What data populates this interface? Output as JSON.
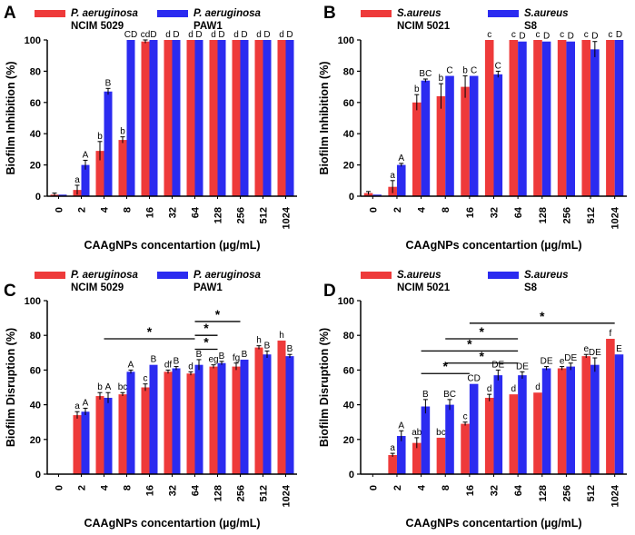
{
  "colors": {
    "red": "#ee3a3a",
    "blue": "#2b2bf0",
    "axis": "#000000",
    "bar_edge": "#000000"
  },
  "chart_data": [
    {
      "panel": "A",
      "type": "bar",
      "title": "",
      "xlabel": "CAAgNPs concentartion (µg/mL)",
      "ylabel": "Biofilm Inhibition (%)",
      "ylim": [
        0,
        100
      ],
      "yticks": [
        0,
        20,
        40,
        60,
        80,
        100
      ],
      "categories": [
        "0",
        "2",
        "4",
        "8",
        "16",
        "32",
        "64",
        "128",
        "256",
        "512",
        "1024"
      ],
      "series": [
        {
          "name": "P. aeruginosa NCIM 5029",
          "legend_italic": "P. aeruginosa",
          "legend_sub": "NCIM 5029",
          "color": "red",
          "values": [
            1,
            4,
            29,
            36,
            99,
            100,
            100,
            100,
            100,
            100,
            100
          ],
          "errors": [
            1,
            3,
            6,
            2,
            1,
            0,
            0,
            0,
            0,
            0,
            0
          ],
          "letters": [
            "",
            "a",
            "b",
            "b",
            "cd",
            "d",
            "d",
            "d",
            "d",
            "d",
            "d"
          ]
        },
        {
          "name": "P. aeruginosa PAW1",
          "legend_italic": "P. aeruginosa",
          "legend_sub": "PAW1",
          "color": "blue",
          "values": [
            1,
            20,
            67,
            100,
            100,
            100,
            100,
            100,
            100,
            100,
            100
          ],
          "errors": [
            0,
            3,
            2,
            0,
            0,
            0,
            0,
            0,
            0,
            0,
            0
          ],
          "letters": [
            "",
            "A",
            "B",
            "CD",
            "D",
            "D",
            "D",
            "D",
            "D",
            "D",
            "D"
          ]
        }
      ],
      "brackets": []
    },
    {
      "panel": "B",
      "type": "bar",
      "title": "",
      "xlabel": "CAAgNPs concentartion (µg/mL)",
      "ylabel": "Biofilm Inhibition (%)",
      "ylim": [
        0,
        100
      ],
      "yticks": [
        0,
        20,
        40,
        60,
        80,
        100
      ],
      "categories": [
        "0",
        "2",
        "4",
        "8",
        "16",
        "32",
        "64",
        "128",
        "256",
        "512",
        "1024"
      ],
      "series": [
        {
          "name": "S.aureus NCIM 5021",
          "legend_italic": "S.aureus",
          "legend_sub": "NCIM 5021",
          "color": "red",
          "values": [
            2,
            6,
            60,
            64,
            70,
            100,
            100,
            100,
            100,
            100,
            100
          ],
          "errors": [
            1,
            4,
            5,
            8,
            7,
            0,
            0,
            0,
            0,
            0,
            0
          ],
          "letters": [
            "",
            "a",
            "b",
            "b",
            "b",
            "c",
            "c",
            "c",
            "c",
            "c",
            "c"
          ]
        },
        {
          "name": "S.aureus S8",
          "legend_italic": "S.aureus",
          "legend_sub": "S8",
          "color": "blue",
          "values": [
            1,
            20,
            74,
            77,
            77,
            78,
            99,
            99,
            99,
            94,
            100
          ],
          "errors": [
            0,
            1,
            1,
            0,
            0,
            2,
            0,
            0,
            0,
            5,
            0
          ],
          "letters": [
            "",
            "A",
            "BC",
            "C",
            "C",
            "C",
            "D",
            "D",
            "D",
            "D",
            "D"
          ]
        }
      ],
      "brackets": []
    },
    {
      "panel": "C",
      "type": "bar",
      "title": "",
      "xlabel": "CAAgNPs concentartion (µg/mL)",
      "ylabel": "Biofilm Disruption (%)",
      "ylim": [
        0,
        100
      ],
      "yticks": [
        0,
        20,
        40,
        60,
        80,
        100
      ],
      "categories": [
        "0",
        "2",
        "4",
        "8",
        "16",
        "32",
        "64",
        "128",
        "256",
        "512",
        "1024"
      ],
      "series": [
        {
          "name": "P. aeruginosa NCIM 5029",
          "legend_italic": "P. aeruginosa",
          "legend_sub": "NCIM 5029",
          "color": "red",
          "values": [
            0,
            34,
            45,
            46,
            50,
            59,
            58,
            62,
            62,
            73,
            77
          ],
          "errors": [
            0,
            2,
            2,
            1,
            2,
            1,
            1,
            1,
            2,
            1,
            0
          ],
          "letters": [
            "",
            "a",
            "b",
            "bc",
            "c",
            "df",
            "d",
            "eg",
            "fg",
            "h",
            "h"
          ]
        },
        {
          "name": "P. aeruginosa PAW1",
          "legend_italic": "P. aeruginosa",
          "legend_sub": "PAW1",
          "color": "blue",
          "values": [
            0,
            36,
            44,
            59,
            63,
            61,
            63,
            64,
            66,
            69,
            68
          ],
          "errors": [
            0,
            2,
            3,
            1,
            0,
            1,
            3,
            1,
            0,
            2,
            1
          ],
          "letters": [
            "",
            "A",
            "A",
            "A",
            "B",
            "B",
            "B",
            "B",
            "B",
            "B",
            "B"
          ]
        }
      ],
      "brackets": [
        {
          "from": "4",
          "to": "64",
          "y": 78,
          "label": "*"
        },
        {
          "from": "64",
          "to": "256",
          "y": 88,
          "label": "*"
        },
        {
          "from": "64",
          "to": "128",
          "y": 80,
          "label": "*"
        },
        {
          "from": "64",
          "to": "128",
          "y": 72,
          "label": "*"
        }
      ]
    },
    {
      "panel": "D",
      "type": "bar",
      "title": "",
      "xlabel": "CAAgNPs concentartion (µg/mL)",
      "ylabel": "Biofilm Disruption (%)",
      "ylim": [
        0,
        100
      ],
      "yticks": [
        0,
        20,
        40,
        60,
        80,
        100
      ],
      "categories": [
        "0",
        "2",
        "4",
        "8",
        "16",
        "32",
        "64",
        "128",
        "256",
        "512",
        "1024"
      ],
      "series": [
        {
          "name": "S.aureus NCIM 5021",
          "legend_italic": "S.aureus",
          "legend_sub": "NCIM 5021",
          "color": "red",
          "values": [
            0,
            11,
            18,
            21,
            29,
            44,
            46,
            47,
            61,
            68,
            78
          ],
          "errors": [
            0,
            1,
            3,
            0,
            1,
            2,
            0,
            0,
            1,
            1,
            0
          ],
          "letters": [
            "",
            "a",
            "ab",
            "bc",
            "c",
            "d",
            "d",
            "d",
            "e",
            "e",
            "f"
          ]
        },
        {
          "name": "S.aureus S8",
          "legend_italic": "S.aureus",
          "legend_sub": "S8",
          "color": "blue",
          "values": [
            0,
            22,
            39,
            40,
            52,
            57,
            57,
            61,
            62,
            63,
            69
          ],
          "errors": [
            0,
            3,
            4,
            3,
            0,
            3,
            2,
            1,
            2,
            4,
            0
          ],
          "letters": [
            "",
            "A",
            "B",
            "BC",
            "CD",
            "DE",
            "DE",
            "DE",
            "DE",
            "DE",
            "E"
          ]
        }
      ],
      "brackets": [
        {
          "from": "4",
          "to": "16",
          "y": 58,
          "label": "*"
        },
        {
          "from": "16",
          "to": "1024",
          "y": 87,
          "label": "*"
        },
        {
          "from": "8",
          "to": "64",
          "y": 78,
          "label": "*"
        },
        {
          "from": "4",
          "to": "64",
          "y": 71,
          "label": "*"
        },
        {
          "from": "8",
          "to": "64",
          "y": 64,
          "label": "*"
        }
      ]
    }
  ]
}
